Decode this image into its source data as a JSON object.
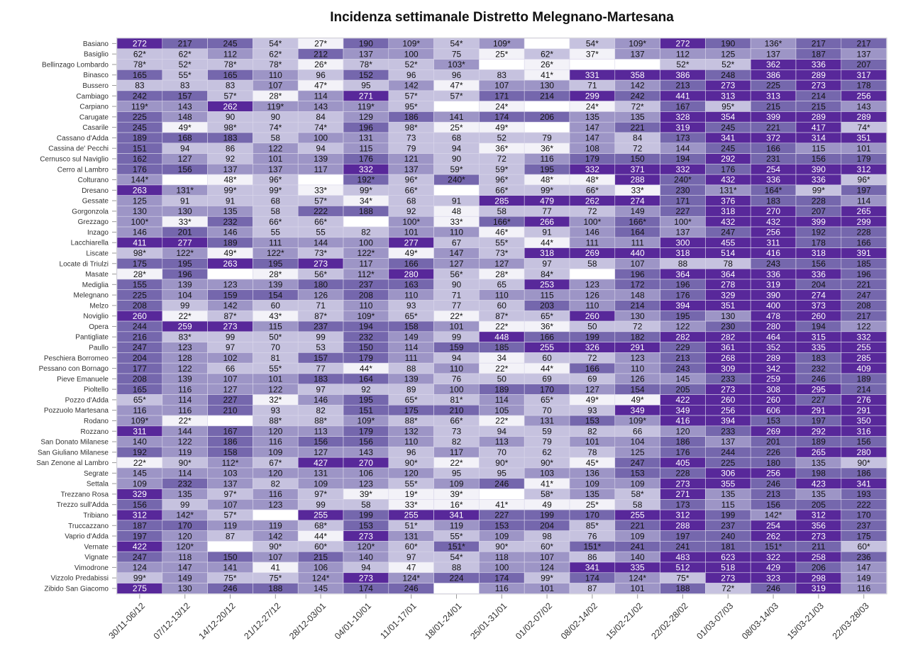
{
  "chart_data": {
    "type": "heatmap",
    "title": "Incidenza settimanale Distretto Melegnano-Martesana",
    "x": [
      "30/11-06/12",
      "07/12-13/12",
      "14/12-20/12",
      "21/12-27/12",
      "28/12-03/01",
      "04/01-10/01",
      "11/01-17/01",
      "18/01-24/01",
      "25/01-31/01",
      "01/02-07/02",
      "08/02-14/02",
      "15/02-21/02",
      "22/02-28/02",
      "01/03-07/03",
      "08/03-14/03",
      "15/03-21/03",
      "22/03-28/03"
    ],
    "y": [
      "Basiano",
      "Basiglio",
      "Bellinzago Lombardo",
      "Binasco",
      "Bussero",
      "Cambiago",
      "Carpiano",
      "Carugate",
      "Casarile",
      "Cassano d'Adda",
      "Cassina de' Pecchi",
      "Cernusco sul Naviglio",
      "Cerro al Lambro",
      "Colturano",
      "Dresano",
      "Gessate",
      "Gorgonzola",
      "Grezzago",
      "Inzago",
      "Lacchiarella",
      "Liscate",
      "Locate di Triulzi",
      "Masate",
      "Mediglia",
      "Melegnano",
      "Melzo",
      "Noviglio",
      "Opera",
      "Pantigliate",
      "Paullo",
      "Peschiera Borromeo",
      "Pessano con Bornago",
      "Pieve Emanuele",
      "Pioltello",
      "Pozzo d'Adda",
      "Pozzuolo Martesana",
      "Rodano",
      "Rozzano",
      "San Donato Milanese",
      "San Giuliano Milanese",
      "San Zenone al Lambro",
      "Segrate",
      "Settala",
      "Trezzano Rosa",
      "Trezzo sull'Adda",
      "Tribiano",
      "Truccazzano",
      "Vaprio d'Adda",
      "Vernate",
      "Vignate",
      "Vimodrone",
      "Vizzolo Predabissi",
      "Zibido San Giacomo"
    ],
    "values": [
      [
        "272",
        "217",
        "245",
        "54*",
        "27*",
        "190",
        "109*",
        "54*",
        "109*",
        "",
        "54*",
        "109*",
        "272",
        "190",
        "136*",
        "217",
        "217"
      ],
      [
        "62*",
        "62*",
        "112",
        "62*",
        "212",
        "137",
        "100",
        "75",
        "25*",
        "62*",
        "37*",
        "137",
        "112",
        "125",
        "137",
        "187",
        "137"
      ],
      [
        "78*",
        "52*",
        "78*",
        "78*",
        "26*",
        "78*",
        "52*",
        "103*",
        "",
        "26*",
        "",
        "",
        "52*",
        "52*",
        "362",
        "336",
        "207"
      ],
      [
        "165",
        "55*",
        "165",
        "110",
        "96",
        "152",
        "96",
        "96",
        "83",
        "41*",
        "331",
        "358",
        "386",
        "248",
        "386",
        "289",
        "317"
      ],
      [
        "83",
        "83",
        "83",
        "107",
        "47*",
        "95",
        "142",
        "47*",
        "107",
        "130",
        "71",
        "142",
        "213",
        "273",
        "225",
        "273",
        "178"
      ],
      [
        "242",
        "157",
        "57*",
        "28*",
        "114",
        "271",
        "57*",
        "57*",
        "171",
        "214",
        "299",
        "242",
        "441",
        "313",
        "313",
        "214",
        "256"
      ],
      [
        "119*",
        "143",
        "262",
        "119*",
        "143",
        "119*",
        "95*",
        "",
        "24*",
        "",
        "24*",
        "72*",
        "167",
        "95*",
        "215",
        "215",
        "143"
      ],
      [
        "225",
        "148",
        "90",
        "90",
        "84",
        "129",
        "186",
        "141",
        "174",
        "206",
        "135",
        "135",
        "328",
        "354",
        "399",
        "289",
        "289"
      ],
      [
        "245",
        "49*",
        "98*",
        "74*",
        "74*",
        "196",
        "98*",
        "25*",
        "49*",
        "",
        "147",
        "221",
        "319",
        "245",
        "221",
        "417",
        "74*"
      ],
      [
        "189",
        "168",
        "183",
        "58",
        "100",
        "131",
        "73",
        "68",
        "52",
        "79",
        "147",
        "84",
        "173",
        "341",
        "372",
        "314",
        "351"
      ],
      [
        "151",
        "94",
        "86",
        "122",
        "94",
        "115",
        "79",
        "94",
        "36*",
        "36*",
        "108",
        "72",
        "144",
        "245",
        "166",
        "115",
        "101"
      ],
      [
        "162",
        "127",
        "92",
        "101",
        "139",
        "176",
        "121",
        "90",
        "72",
        "116",
        "179",
        "150",
        "194",
        "292",
        "231",
        "156",
        "179"
      ],
      [
        "176",
        "156",
        "137",
        "137",
        "117",
        "332",
        "137",
        "59*",
        "59*",
        "195",
        "332",
        "371",
        "332",
        "176",
        "254",
        "390",
        "312"
      ],
      [
        "144*",
        "",
        "48*",
        "96*",
        "",
        "192*",
        "96*",
        "240*",
        "96*",
        "48*",
        "48*",
        "288",
        "240*",
        "432",
        "336",
        "336",
        "96*"
      ],
      [
        "263",
        "131*",
        "99*",
        "99*",
        "33*",
        "99*",
        "66*",
        "",
        "66*",
        "99*",
        "66*",
        "33*",
        "230",
        "131*",
        "164*",
        "99*",
        "197"
      ],
      [
        "125",
        "91",
        "91",
        "68",
        "57*",
        "34*",
        "68",
        "91",
        "285",
        "479",
        "262",
        "274",
        "171",
        "376",
        "183",
        "228",
        "114"
      ],
      [
        "130",
        "130",
        "135",
        "58",
        "222",
        "188",
        "92",
        "48",
        "58",
        "77",
        "72",
        "149",
        "227",
        "318",
        "270",
        "207",
        "265"
      ],
      [
        "100*",
        "33*",
        "232",
        "66*",
        "66*",
        "",
        "100*",
        "33*",
        "166*",
        "266",
        "100*",
        "166*",
        "100*",
        "432",
        "432",
        "399",
        "299"
      ],
      [
        "146",
        "201",
        "146",
        "55",
        "55",
        "82",
        "101",
        "110",
        "46*",
        "91",
        "146",
        "164",
        "137",
        "247",
        "256",
        "192",
        "228"
      ],
      [
        "411",
        "277",
        "189",
        "111",
        "144",
        "100",
        "277",
        "67",
        "55*",
        "44*",
        "111",
        "111",
        "300",
        "455",
        "311",
        "178",
        "166"
      ],
      [
        "98*",
        "122*",
        "49*",
        "122*",
        "73*",
        "122*",
        "49*",
        "147",
        "73*",
        "318",
        "269",
        "440",
        "318",
        "514",
        "416",
        "318",
        "391"
      ],
      [
        "175",
        "195",
        "263",
        "195",
        "273",
        "117",
        "166",
        "127",
        "127",
        "97",
        "58",
        "107",
        "88",
        "78",
        "243",
        "156",
        "185"
      ],
      [
        "28*",
        "196",
        "",
        "28*",
        "56*",
        "112*",
        "280",
        "56*",
        "28*",
        "84*",
        "",
        "196",
        "364",
        "364",
        "336",
        "336",
        "196"
      ],
      [
        "155",
        "139",
        "123",
        "139",
        "180",
        "237",
        "163",
        "90",
        "65",
        "253",
        "123",
        "172",
        "196",
        "278",
        "319",
        "204",
        "221"
      ],
      [
        "225",
        "104",
        "159",
        "154",
        "126",
        "208",
        "110",
        "71",
        "110",
        "115",
        "126",
        "148",
        "176",
        "329",
        "390",
        "274",
        "247"
      ],
      [
        "208",
        "99",
        "142",
        "60",
        "71",
        "110",
        "93",
        "77",
        "60",
        "203",
        "110",
        "214",
        "394",
        "351",
        "400",
        "373",
        "208"
      ],
      [
        "260",
        "22*",
        "87*",
        "43*",
        "87*",
        "109*",
        "65*",
        "22*",
        "87*",
        "65*",
        "260",
        "130",
        "195",
        "130",
        "478",
        "260",
        "217"
      ],
      [
        "244",
        "259",
        "273",
        "115",
        "237",
        "194",
        "158",
        "101",
        "22*",
        "36*",
        "50",
        "72",
        "122",
        "230",
        "280",
        "194",
        "122"
      ],
      [
        "216",
        "83*",
        "99",
        "50*",
        "99",
        "232",
        "149",
        "99",
        "448",
        "166",
        "199",
        "182",
        "282",
        "282",
        "464",
        "315",
        "332"
      ],
      [
        "247",
        "123",
        "97",
        "70",
        "53",
        "150",
        "114",
        "159",
        "185",
        "255",
        "326",
        "291",
        "229",
        "361",
        "352",
        "335",
        "255"
      ],
      [
        "204",
        "128",
        "102",
        "81",
        "157",
        "179",
        "111",
        "94",
        "34",
        "60",
        "72",
        "123",
        "213",
        "268",
        "289",
        "183",
        "285"
      ],
      [
        "177",
        "122",
        "66",
        "55*",
        "77",
        "44*",
        "88",
        "110",
        "22*",
        "44*",
        "166",
        "110",
        "243",
        "309",
        "342",
        "232",
        "409"
      ],
      [
        "208",
        "139",
        "107",
        "101",
        "183",
        "164",
        "139",
        "76",
        "50",
        "69",
        "69",
        "126",
        "145",
        "233",
        "259",
        "246",
        "189"
      ],
      [
        "165",
        "116",
        "127",
        "122",
        "97",
        "92",
        "89",
        "100",
        "189",
        "170",
        "127",
        "154",
        "205",
        "273",
        "308",
        "295",
        "214"
      ],
      [
        "65*",
        "114",
        "227",
        "32*",
        "146",
        "195",
        "65*",
        "81*",
        "114",
        "65*",
        "49*",
        "49*",
        "422",
        "260",
        "260",
        "227",
        "276"
      ],
      [
        "116",
        "116",
        "210",
        "93",
        "82",
        "151",
        "175",
        "210",
        "105",
        "70",
        "93",
        "349",
        "349",
        "256",
        "606",
        "291",
        "291"
      ],
      [
        "109*",
        "22*",
        "",
        "88*",
        "88*",
        "109*",
        "88*",
        "66*",
        "22*",
        "131",
        "153",
        "109*",
        "416",
        "394",
        "153",
        "197",
        "350"
      ],
      [
        "311",
        "144",
        "167",
        "120",
        "113",
        "179",
        "132",
        "73",
        "94",
        "59",
        "82",
        "66",
        "120",
        "233",
        "269",
        "292",
        "316"
      ],
      [
        "140",
        "122",
        "186",
        "116",
        "156",
        "156",
        "110",
        "82",
        "113",
        "79",
        "101",
        "104",
        "186",
        "137",
        "201",
        "189",
        "156"
      ],
      [
        "192",
        "119",
        "158",
        "109",
        "127",
        "143",
        "96",
        "117",
        "70",
        "62",
        "78",
        "125",
        "176",
        "244",
        "226",
        "265",
        "280"
      ],
      [
        "22*",
        "90*",
        "112*",
        "67*",
        "427",
        "270",
        "90*",
        "22*",
        "90*",
        "90*",
        "45*",
        "247",
        "405",
        "225",
        "180",
        "135",
        "90*"
      ],
      [
        "145",
        "114",
        "103",
        "120",
        "131",
        "106",
        "120",
        "95",
        "95",
        "103",
        "136",
        "153",
        "228",
        "306",
        "256",
        "198",
        "186"
      ],
      [
        "109",
        "232",
        "137",
        "82",
        "109",
        "123",
        "55*",
        "109",
        "246",
        "41*",
        "109",
        "109",
        "273",
        "355",
        "246",
        "423",
        "341"
      ],
      [
        "329",
        "135",
        "97*",
        "116",
        "97*",
        "39*",
        "19*",
        "39*",
        "",
        "58*",
        "135",
        "58*",
        "271",
        "135",
        "213",
        "135",
        "193"
      ],
      [
        "156",
        "99",
        "107",
        "123",
        "99",
        "58",
        "33*",
        "16*",
        "41*",
        "49",
        "25*",
        "58",
        "173",
        "115",
        "156",
        "205",
        "222"
      ],
      [
        "312",
        "142*",
        "57*",
        "",
        "255",
        "199",
        "255",
        "341",
        "227",
        "199",
        "170",
        "255",
        "312",
        "199",
        "142*",
        "312",
        "170"
      ],
      [
        "187",
        "170",
        "119",
        "119",
        "68*",
        "153",
        "51*",
        "119",
        "153",
        "204",
        "85*",
        "221",
        "288",
        "237",
        "254",
        "356",
        "237"
      ],
      [
        "197",
        "120",
        "87",
        "142",
        "44*",
        "273",
        "131",
        "55*",
        "109",
        "98",
        "76",
        "109",
        "197",
        "240",
        "262",
        "273",
        "175"
      ],
      [
        "422",
        "120*",
        "",
        "90*",
        "60*",
        "120*",
        "60*",
        "151*",
        "90*",
        "60*",
        "151*",
        "241",
        "241",
        "181",
        "151*",
        "211",
        "60*"
      ],
      [
        "247",
        "118",
        "150",
        "107",
        "215",
        "140",
        "97",
        "54*",
        "118",
        "107",
        "86",
        "140",
        "483",
        "623",
        "322",
        "258",
        "236"
      ],
      [
        "124",
        "147",
        "141",
        "41",
        "106",
        "94",
        "47",
        "88",
        "100",
        "124",
        "341",
        "335",
        "512",
        "518",
        "429",
        "206",
        "147"
      ],
      [
        "99*",
        "149",
        "75*",
        "75*",
        "124*",
        "273",
        "124*",
        "224",
        "174",
        "99*",
        "174",
        "124*",
        "75*",
        "273",
        "323",
        "298",
        "149"
      ],
      [
        "275",
        "130",
        "246",
        "188",
        "145",
        "174",
        "246",
        "",
        "116",
        "101",
        "87",
        "101",
        "188",
        "72*",
        "246",
        "319",
        "116"
      ]
    ],
    "colors": {
      "lightest": "#f3f2f8",
      "light": "#c6c2df",
      "mid": "#9d95c6",
      "dark": "#7567ad",
      "darkest": "#58289a",
      "empty": "#ffffff",
      "grid": "#d9d6ea"
    }
  }
}
